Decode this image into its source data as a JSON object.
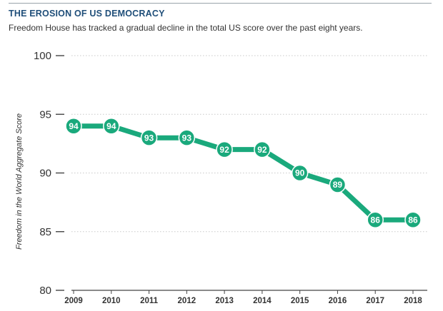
{
  "chart_data": {
    "type": "line",
    "title": "THE EROSION OF US DEMOCRACY",
    "subtitle": "Freedom House has tracked a gradual decline in the total US score over the past eight years.",
    "xlabel": "",
    "ylabel": "Freedom in the World Aggregate Score",
    "categories": [
      "2009",
      "2010",
      "2011",
      "2012",
      "2013",
      "2014",
      "2015",
      "2016",
      "2017",
      "2018"
    ],
    "values": [
      94,
      94,
      93,
      93,
      92,
      92,
      90,
      89,
      86,
      86
    ],
    "data_labels": [
      "94",
      "94",
      "93",
      "93",
      "92",
      "92",
      "90",
      "89",
      "86",
      "86"
    ],
    "y_ticks": [
      80,
      85,
      90,
      95,
      100
    ],
    "y_tick_labels": [
      "80",
      "85",
      "90",
      "95",
      "100"
    ],
    "ylim": [
      80,
      100
    ],
    "grid": "horizontal dotted",
    "legend": "none",
    "colors": {
      "line": "#1aa97c",
      "title": "#1f4e79",
      "text": "#333333",
      "grid": "#c8c8c8"
    }
  }
}
